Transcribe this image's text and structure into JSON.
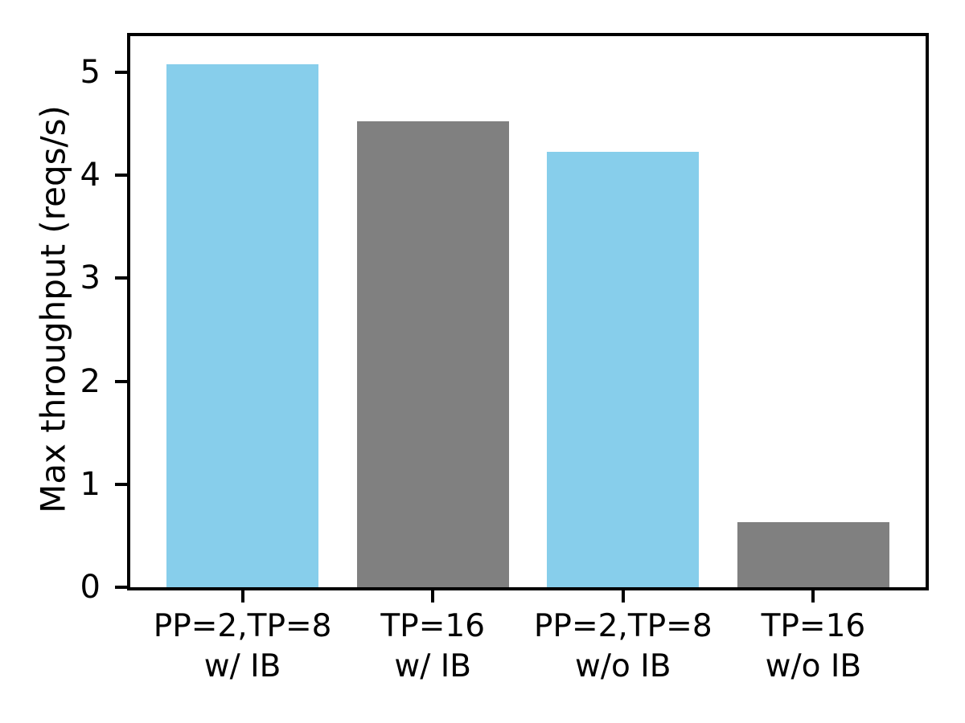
{
  "figure": {
    "background": "#ffffff"
  },
  "chart_data": {
    "type": "bar",
    "title": "",
    "xlabel": "",
    "ylabel": "Max throughput (reqs/s)",
    "categories": [
      "PP=2,TP=8\nw/ IB",
      "TP=16\nw/ IB",
      "PP=2,TP=8\nw/o IB",
      "TP=16\nw/o IB"
    ],
    "values": [
      5.08,
      4.52,
      4.23,
      0.63
    ],
    "bar_colors": [
      "#87CEEB",
      "#808080",
      "#87CEEB",
      "#808080"
    ],
    "x_positions": [
      0,
      1,
      2,
      3
    ],
    "xlim": [
      -0.59,
      3.59
    ],
    "bar_width": 0.8,
    "yticks": [
      0,
      1,
      2,
      3,
      4,
      5
    ],
    "ylim": [
      0,
      5.35
    ],
    "grid": false,
    "legend": "none",
    "axis_color": "#000000",
    "axes_box": true
  }
}
